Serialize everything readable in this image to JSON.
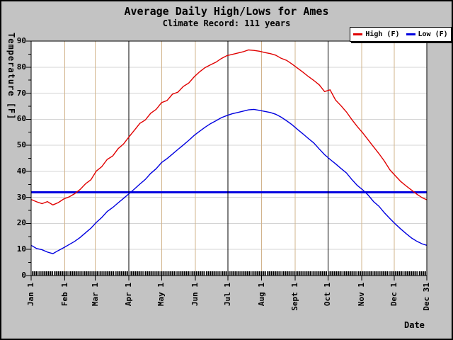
{
  "title": "Average Daily High/Lows for Ames",
  "subtitle": "Climate Record: 111 years",
  "chart_data": {
    "type": "line",
    "title": "Average Daily High/Lows for Ames",
    "subtitle": "Climate Record: 111 years",
    "xlabel": "Date",
    "ylabel": "Temperature [F]",
    "ylim": [
      0,
      90
    ],
    "ytick_major": 10,
    "ytick_minor": 5,
    "x_range_days": [
      0,
      364
    ],
    "legend_position": "top-right",
    "grid": {
      "h_line_color": "#d4d4d4",
      "month_line_color": "#d2b48c",
      "quarter_line_color": "#000000",
      "plot_bg": "#ffffff",
      "frame_color": "#000000"
    },
    "x_ticks": [
      {
        "label": "Jan 1",
        "day": 0
      },
      {
        "label": "Feb 1",
        "day": 31
      },
      {
        "label": "Mar 1",
        "day": 59
      },
      {
        "label": "Apr 1",
        "day": 90
      },
      {
        "label": "May 1",
        "day": 120
      },
      {
        "label": "Jun 1",
        "day": 151
      },
      {
        "label": "Jul 1",
        "day": 181
      },
      {
        "label": "Aug 1",
        "day": 212
      },
      {
        "label": "Sept 1",
        "day": 243
      },
      {
        "label": "Oct 1",
        "day": 273
      },
      {
        "label": "Nov 1",
        "day": 304
      },
      {
        "label": "Dec 1",
        "day": 334
      },
      {
        "label": "Dec 31",
        "day": 364
      }
    ],
    "quarter_line_days": [
      90,
      181,
      273
    ],
    "reference_line": {
      "value": 32,
      "color": "#0000e0",
      "meaning": "freezing (32 F)"
    },
    "days": [
      0,
      5,
      10,
      15,
      20,
      25,
      30,
      35,
      40,
      45,
      50,
      55,
      60,
      65,
      70,
      75,
      80,
      85,
      90,
      95,
      100,
      105,
      110,
      115,
      120,
      125,
      130,
      135,
      140,
      145,
      150,
      155,
      160,
      165,
      170,
      175,
      180,
      185,
      190,
      195,
      200,
      205,
      210,
      215,
      220,
      225,
      230,
      235,
      240,
      245,
      250,
      255,
      260,
      265,
      270,
      275,
      280,
      285,
      290,
      295,
      300,
      305,
      310,
      315,
      320,
      325,
      330,
      335,
      340,
      345,
      350,
      355,
      360,
      364
    ],
    "series": [
      {
        "name": "High (F)",
        "color": "#e00000",
        "values": [
          29.2,
          28.3,
          27.6,
          28.4,
          27.1,
          28.0,
          29.4,
          30.2,
          31.4,
          33.0,
          35.2,
          36.8,
          40.1,
          41.8,
          44.6,
          45.9,
          48.7,
          50.5,
          53.2,
          55.8,
          58.4,
          59.7,
          62.3,
          63.8,
          66.4,
          67.2,
          69.6,
          70.4,
          72.6,
          73.9,
          76.3,
          78.2,
          79.8,
          80.9,
          81.9,
          83.3,
          84.4,
          84.9,
          85.4,
          85.9,
          86.6,
          86.4,
          86.1,
          85.6,
          85.2,
          84.6,
          83.4,
          82.6,
          81.2,
          79.6,
          78.1,
          76.4,
          74.9,
          73.2,
          70.6,
          71.3,
          67.4,
          65.2,
          62.8,
          59.9,
          57.2,
          54.8,
          52.1,
          49.4,
          46.8,
          43.9,
          40.6,
          38.3,
          36.1,
          34.4,
          32.8,
          31.2,
          29.8,
          29.1
        ]
      },
      {
        "name": "Low (F)",
        "color": "#0000e0",
        "values": [
          11.6,
          10.4,
          9.9,
          9.0,
          8.4,
          9.6,
          10.7,
          11.9,
          13.1,
          14.6,
          16.4,
          18.2,
          20.4,
          22.3,
          24.6,
          26.1,
          27.9,
          29.6,
          31.4,
          33.2,
          35.1,
          36.9,
          39.2,
          41.0,
          43.4,
          44.9,
          46.6,
          48.4,
          50.1,
          51.9,
          53.8,
          55.4,
          56.9,
          58.3,
          59.4,
          60.6,
          61.4,
          62.1,
          62.6,
          63.1,
          63.6,
          63.8,
          63.4,
          63.0,
          62.6,
          61.9,
          60.8,
          59.4,
          57.9,
          56.1,
          54.4,
          52.6,
          50.9,
          48.6,
          46.4,
          44.6,
          42.9,
          41.1,
          39.4,
          36.9,
          34.6,
          32.9,
          30.9,
          28.4,
          26.6,
          24.1,
          21.9,
          19.8,
          17.9,
          16.1,
          14.4,
          13.1,
          12.1,
          11.6
        ]
      }
    ]
  }
}
